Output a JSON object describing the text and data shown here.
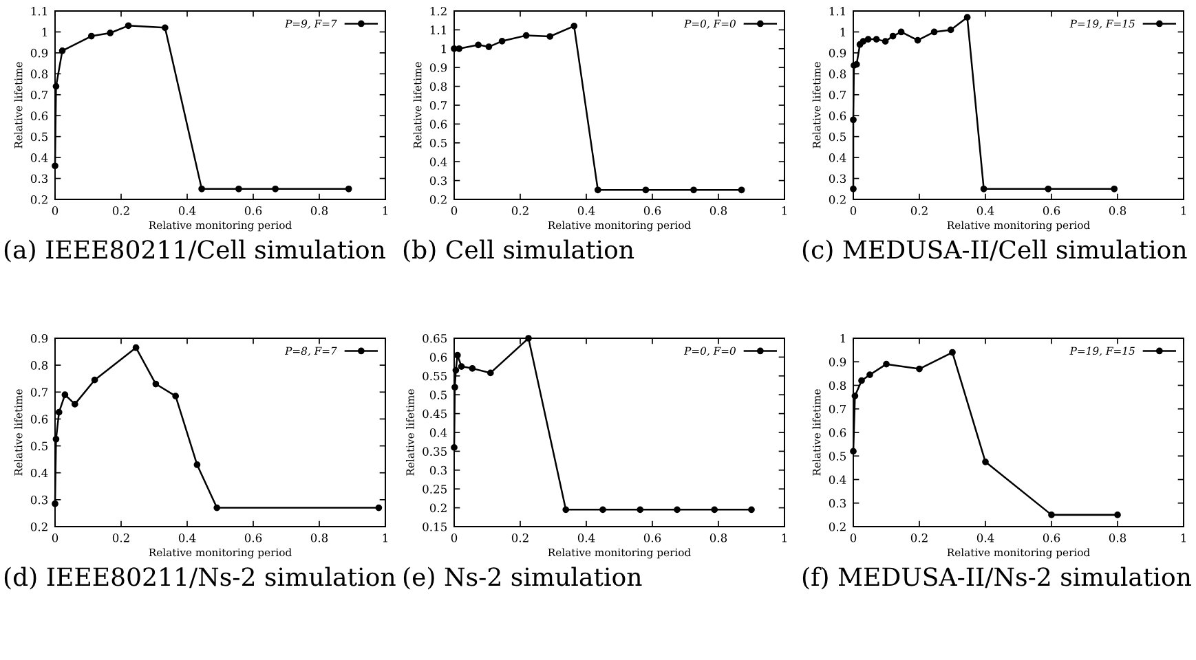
{
  "chart_data": [
    {
      "type": "line",
      "title": "(a) IEEE80211/Cell simulation",
      "xlabel": "Relative monitoring period",
      "ylabel": "Relative lifetime",
      "xlim": [
        0,
        1
      ],
      "xticks": [
        0,
        0.2,
        0.4,
        0.6,
        0.8,
        1
      ],
      "ylim": [
        0.2,
        1.1
      ],
      "yticks": [
        0.2,
        0.3,
        0.4,
        0.5,
        0.6,
        0.7,
        0.8,
        0.9,
        1,
        1.1
      ],
      "marker": "circle",
      "line_style": "solid",
      "legend": "top right",
      "grid": false,
      "series": [
        {
          "name": "P=9, F=7",
          "color": "#000000",
          "x": [
            0,
            0.003,
            0.022,
            0.11,
            0.167,
            0.222,
            0.333,
            0.444,
            0.556,
            0.667,
            0.889
          ],
          "values": [
            0.36,
            0.74,
            0.91,
            0.98,
            0.995,
            1.03,
            1.02,
            0.25,
            0.25,
            0.25,
            0.25
          ]
        }
      ]
    },
    {
      "type": "line",
      "title": "(b) Cell simulation",
      "xlabel": "Relative monitoring period",
      "ylabel": "Relative lifetime",
      "xlim": [
        0,
        1
      ],
      "xticks": [
        0,
        0.2,
        0.4,
        0.6,
        0.8,
        1
      ],
      "ylim": [
        0.2,
        1.2
      ],
      "yticks": [
        0.2,
        0.3,
        0.4,
        0.5,
        0.6,
        0.7,
        0.8,
        0.9,
        1,
        1.1,
        1.2
      ],
      "marker": "circle",
      "line_style": "solid",
      "legend": "top right",
      "grid": false,
      "series": [
        {
          "name": "P=0, F=0",
          "color": "#000000",
          "x": [
            0,
            0.015,
            0.073,
            0.105,
            0.145,
            0.218,
            0.29,
            0.363,
            0.435,
            0.58,
            0.725,
            0.87
          ],
          "values": [
            1.0,
            1.0,
            1.02,
            1.01,
            1.04,
            1.07,
            1.065,
            1.12,
            0.25,
            0.25,
            0.25,
            0.25
          ]
        }
      ]
    },
    {
      "type": "line",
      "title": "(c) MEDUSA-II/Cell simulation",
      "xlabel": "Relative monitoring period",
      "ylabel": "Relative lifetime",
      "xlim": [
        0,
        1
      ],
      "xticks": [
        0,
        0.2,
        0.4,
        0.6,
        0.8,
        1
      ],
      "ylim": [
        0.2,
        1.1
      ],
      "yticks": [
        0.2,
        0.3,
        0.4,
        0.5,
        0.6,
        0.7,
        0.8,
        0.9,
        1,
        1.1
      ],
      "marker": "circle",
      "line_style": "solid",
      "legend": "top right",
      "grid": false,
      "series": [
        {
          "name": "P=19, F=15",
          "color": "#000000",
          "x": [
            0,
            0,
            0.002,
            0.01,
            0.02,
            0.03,
            0.045,
            0.07,
            0.097,
            0.12,
            0.145,
            0.195,
            0.245,
            0.295,
            0.345,
            0.395,
            0.59,
            0.79
          ],
          "values": [
            0.25,
            0.58,
            0.84,
            0.845,
            0.94,
            0.955,
            0.965,
            0.965,
            0.955,
            0.98,
            1.0,
            0.96,
            1.0,
            1.01,
            1.07,
            0.25,
            0.25,
            0.25
          ]
        }
      ]
    },
    {
      "type": "line",
      "title": "(d) IEEE80211/Ns-2 simulation",
      "xlabel": "Relative monitoring period",
      "ylabel": "Relative lifetime",
      "xlim": [
        0,
        1
      ],
      "xticks": [
        0,
        0.2,
        0.4,
        0.6,
        0.8,
        1
      ],
      "ylim": [
        0.2,
        0.9
      ],
      "yticks": [
        0.2,
        0.3,
        0.4,
        0.5,
        0.6,
        0.7,
        0.8,
        0.9
      ],
      "marker": "circle",
      "line_style": "solid",
      "legend": "top right",
      "grid": false,
      "series": [
        {
          "name": "P=8, F=7",
          "color": "#000000",
          "x": [
            0,
            0.003,
            0.012,
            0.03,
            0.06,
            0.12,
            0.245,
            0.305,
            0.365,
            0.43,
            0.49,
            0.98
          ],
          "values": [
            0.285,
            0.525,
            0.625,
            0.69,
            0.655,
            0.745,
            0.865,
            0.73,
            0.685,
            0.43,
            0.27,
            0.27
          ]
        }
      ]
    },
    {
      "type": "line",
      "title": "(e) Ns-2 simulation",
      "xlabel": "Relative monitoring period",
      "ylabel": "Relative lifetime",
      "xlim": [
        0,
        1
      ],
      "xticks": [
        0,
        0.2,
        0.4,
        0.6,
        0.8,
        1
      ],
      "ylim": [
        0.15,
        0.65
      ],
      "yticks": [
        0.15,
        0.2,
        0.25,
        0.3,
        0.35,
        0.4,
        0.45,
        0.5,
        0.55,
        0.6,
        0.65
      ],
      "marker": "circle",
      "line_style": "solid",
      "legend": "top right",
      "grid": false,
      "series": [
        {
          "name": "P=0, F=0",
          "color": "#000000",
          "x": [
            0,
            0.002,
            0.005,
            0.01,
            0.022,
            0.055,
            0.11,
            0.225,
            0.338,
            0.45,
            0.563,
            0.675,
            0.788,
            0.9
          ],
          "values": [
            0.36,
            0.52,
            0.565,
            0.605,
            0.575,
            0.57,
            0.558,
            0.65,
            0.195,
            0.195,
            0.195,
            0.195,
            0.195,
            0.195
          ]
        }
      ]
    },
    {
      "type": "line",
      "title": "(f) MEDUSA-II/Ns-2 simulation",
      "xlabel": "Relative monitoring period",
      "ylabel": "Relative lifetime",
      "xlim": [
        0,
        1
      ],
      "xticks": [
        0,
        0.2,
        0.4,
        0.6,
        0.8,
        1
      ],
      "ylim": [
        0.2,
        1
      ],
      "yticks": [
        0.2,
        0.3,
        0.4,
        0.5,
        0.6,
        0.7,
        0.8,
        0.9,
        1
      ],
      "marker": "circle",
      "line_style": "solid",
      "legend": "top right",
      "grid": false,
      "series": [
        {
          "name": "P=19, F=15",
          "color": "#000000",
          "x": [
            0,
            0.005,
            0.025,
            0.05,
            0.1,
            0.2,
            0.3,
            0.4,
            0.6,
            0.8
          ],
          "values": [
            0.52,
            0.755,
            0.82,
            0.845,
            0.89,
            0.87,
            0.94,
            0.475,
            0.25,
            0.25
          ]
        }
      ]
    }
  ]
}
